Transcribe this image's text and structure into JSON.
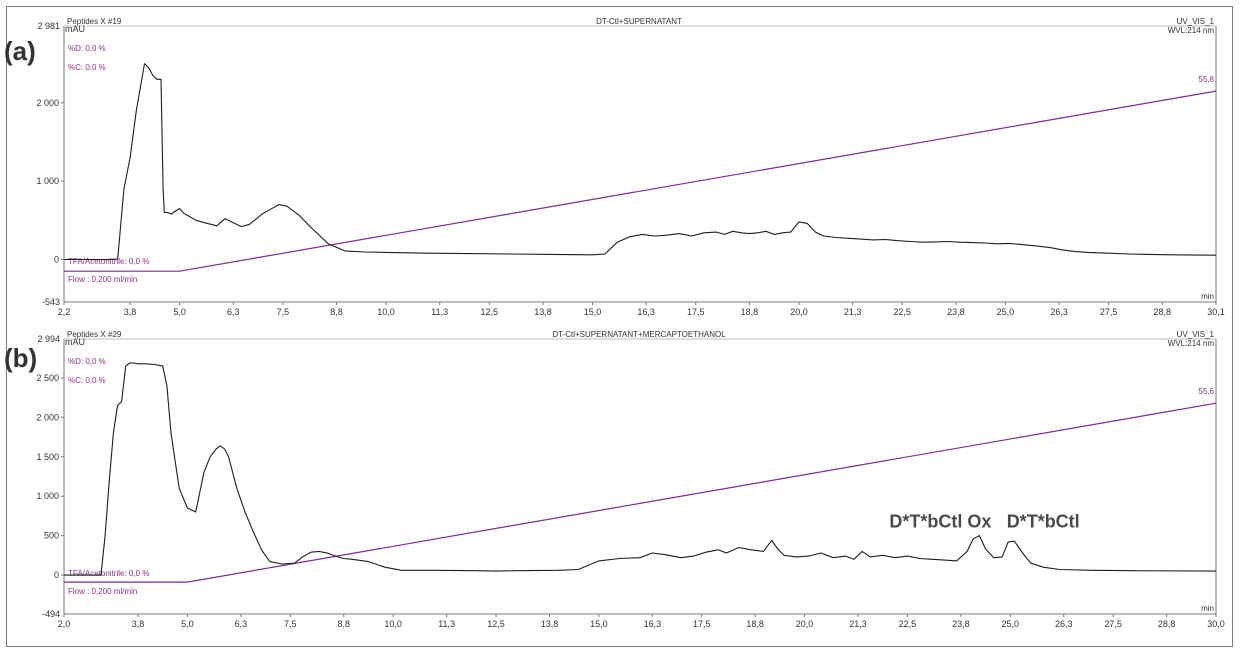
{
  "chart_data": [
    {
      "type": "line",
      "panel_label": "(a)",
      "header_left": "Peptides X #19",
      "title": "DT-Ctl+SUPERNATANT",
      "header_right": "UV_VIS_1",
      "wavelength": "WVL:214 nm",
      "ylabel": "mAU",
      "xlabel": "min",
      "xlim": [
        2.2,
        30.1
      ],
      "ylim": [
        -543,
        2981
      ],
      "y_top_label": "2 981",
      "y_bottom_label": "-543",
      "yticks": [
        {
          "value": 2000,
          "label": "2 000"
        },
        {
          "value": 1000,
          "label": "1 000"
        },
        {
          "value": 0,
          "label": "0"
        }
      ],
      "xticks": [
        {
          "value": 2.2,
          "label": "2,2"
        },
        {
          "value": 3.8,
          "label": "3,8"
        },
        {
          "value": 5.0,
          "label": "5,0"
        },
        {
          "value": 6.3,
          "label": "6,3"
        },
        {
          "value": 7.5,
          "label": "7,5"
        },
        {
          "value": 8.8,
          "label": "8,8"
        },
        {
          "value": 10.0,
          "label": "10,0"
        },
        {
          "value": 11.3,
          "label": "11,3"
        },
        {
          "value": 12.5,
          "label": "12,5"
        },
        {
          "value": 13.8,
          "label": "13,8"
        },
        {
          "value": 15.0,
          "label": "15,0"
        },
        {
          "value": 16.3,
          "label": "16,3"
        },
        {
          "value": 17.5,
          "label": "17,5"
        },
        {
          "value": 18.8,
          "label": "18,8"
        },
        {
          "value": 20.0,
          "label": "20,0"
        },
        {
          "value": 21.3,
          "label": "21,3"
        },
        {
          "value": 22.5,
          "label": "22,5"
        },
        {
          "value": 23.8,
          "label": "23,8"
        },
        {
          "value": 25.0,
          "label": "25,0"
        },
        {
          "value": 26.3,
          "label": "26,3"
        },
        {
          "value": 27.5,
          "label": "27,5"
        },
        {
          "value": 28.8,
          "label": "28,8"
        },
        {
          "value": 30.1,
          "label": "30,1"
        }
      ],
      "method_labels": [
        "%D: 0,0 %",
        "%C: 0,0 %",
        "TFA/Acetonitrile: 0,0 %",
        "Flow : 0,200 ml/min"
      ],
      "gradient": {
        "end_label": "55,8",
        "x": [
          2.2,
          5.0,
          30.1
        ],
        "y": [
          -150,
          -150,
          2150
        ]
      },
      "series": [
        {
          "x": [
            2.2,
            3.0,
            3.2,
            3.5,
            3.65,
            3.8,
            3.95,
            4.05,
            4.15,
            4.25,
            4.35,
            4.45,
            4.55,
            4.6,
            4.63,
            4.65,
            4.7,
            4.8,
            4.9,
            5.0,
            5.1,
            5.2,
            5.4,
            5.6,
            5.9,
            6.1,
            6.3,
            6.5,
            6.7,
            7.0,
            7.2,
            7.4,
            7.6,
            7.9,
            8.2,
            8.6,
            9.0,
            9.5,
            10.0,
            11.0,
            12.0,
            13.0,
            14.0,
            15.0,
            15.3,
            15.6,
            15.9,
            16.2,
            16.5,
            16.8,
            17.1,
            17.4,
            17.7,
            18.0,
            18.2,
            18.4,
            18.6,
            18.8,
            19.0,
            19.2,
            19.4,
            19.6,
            19.8,
            20.0,
            20.2,
            20.4,
            20.6,
            20.9,
            21.2,
            21.5,
            21.8,
            22.1,
            22.4,
            22.7,
            23.0,
            23.3,
            23.6,
            23.9,
            24.2,
            24.5,
            24.8,
            25.1,
            25.4,
            25.8,
            26.1,
            26.4,
            26.7,
            27.0,
            27.5,
            28.0,
            29.0,
            30.1
          ],
          "y": [
            0,
            0,
            0,
            5,
            900,
            1300,
            1900,
            2200,
            2500,
            2450,
            2350,
            2300,
            2300,
            900,
            600,
            600,
            600,
            580,
            620,
            650,
            590,
            560,
            500,
            470,
            430,
            520,
            470,
            420,
            450,
            580,
            640,
            700,
            680,
            560,
            400,
            200,
            110,
            95,
            90,
            80,
            75,
            70,
            65,
            60,
            70,
            220,
            290,
            320,
            300,
            310,
            330,
            300,
            340,
            350,
            320,
            360,
            340,
            330,
            340,
            360,
            320,
            340,
            350,
            480,
            460,
            350,
            300,
            280,
            270,
            260,
            250,
            255,
            240,
            230,
            220,
            225,
            230,
            220,
            215,
            210,
            200,
            205,
            190,
            170,
            150,
            120,
            100,
            90,
            80,
            70,
            60,
            55
          ]
        }
      ],
      "annotations": []
    },
    {
      "type": "line",
      "panel_label": "(b)",
      "header_left": "Peptides X #29",
      "title": "DT-Ctl+SUPERNATANT+MERCAPTOETHANOL",
      "header_right": "UV_VIS_1",
      "wavelength": "WVL:214 nm",
      "ylabel": "mAU",
      "xlabel": "min",
      "xlim": [
        2.0,
        30.0
      ],
      "ylim": [
        -494,
        2994
      ],
      "y_top_label": "2 994",
      "y_bottom_label": "-494",
      "yticks": [
        {
          "value": 2500,
          "label": "2 500"
        },
        {
          "value": 2000,
          "label": "2 000"
        },
        {
          "value": 1500,
          "label": "1 500"
        },
        {
          "value": 1000,
          "label": "1 000"
        },
        {
          "value": 500,
          "label": "500"
        },
        {
          "value": 0,
          "label": "0"
        }
      ],
      "xticks": [
        {
          "value": 2.0,
          "label": "2,0"
        },
        {
          "value": 3.8,
          "label": "3,8"
        },
        {
          "value": 5.0,
          "label": "5,0"
        },
        {
          "value": 6.3,
          "label": "6,3"
        },
        {
          "value": 7.5,
          "label": "7,5"
        },
        {
          "value": 8.8,
          "label": "8,8"
        },
        {
          "value": 10.0,
          "label": "10,0"
        },
        {
          "value": 11.3,
          "label": "11,3"
        },
        {
          "value": 12.5,
          "label": "12,5"
        },
        {
          "value": 13.8,
          "label": "13,8"
        },
        {
          "value": 15.0,
          "label": "15,0"
        },
        {
          "value": 16.3,
          "label": "16,3"
        },
        {
          "value": 17.5,
          "label": "17,5"
        },
        {
          "value": 18.8,
          "label": "18,8"
        },
        {
          "value": 20.0,
          "label": "20,0"
        },
        {
          "value": 21.3,
          "label": "21,3"
        },
        {
          "value": 22.5,
          "label": "22,5"
        },
        {
          "value": 23.8,
          "label": "23,8"
        },
        {
          "value": 25.0,
          "label": "25,0"
        },
        {
          "value": 26.3,
          "label": "26,3"
        },
        {
          "value": 27.5,
          "label": "27,5"
        },
        {
          "value": 28.8,
          "label": "28,8"
        },
        {
          "value": 30.0,
          "label": "30,0"
        }
      ],
      "method_labels": [
        "%D: 0,0 %",
        "%C: 0,0 %",
        "TFA/Acetonitrile: 0,0 %",
        "Flow : 0,200 ml/min"
      ],
      "gradient": {
        "end_label": "55,6",
        "x": [
          2.0,
          5.0,
          30.0
        ],
        "y": [
          -90,
          -90,
          2180
        ]
      },
      "series": [
        {
          "x": [
            2.0,
            2.9,
            3.0,
            3.1,
            3.2,
            3.3,
            3.4,
            3.5,
            3.6,
            3.7,
            3.8,
            4.0,
            4.2,
            4.4,
            4.5,
            4.6,
            4.8,
            5.0,
            5.2,
            5.4,
            5.55,
            5.7,
            5.8,
            5.9,
            6.0,
            6.1,
            6.2,
            6.4,
            6.6,
            6.8,
            7.0,
            7.3,
            7.6,
            7.8,
            8.0,
            8.2,
            8.4,
            8.6,
            8.8,
            9.0,
            9.4,
            9.8,
            10.2,
            11.0,
            12.0,
            12.5,
            13.0,
            14.0,
            14.5,
            15.0,
            15.5,
            16.0,
            16.3,
            16.6,
            17.0,
            17.3,
            17.6,
            17.9,
            18.1,
            18.4,
            18.7,
            19.0,
            19.2,
            19.35,
            19.5,
            19.8,
            20.1,
            20.4,
            20.7,
            21.0,
            21.2,
            21.4,
            21.6,
            21.9,
            22.2,
            22.5,
            22.8,
            23.1,
            23.4,
            23.7,
            23.95,
            24.1,
            24.25,
            24.4,
            24.6,
            24.8,
            24.95,
            25.1,
            25.3,
            25.5,
            25.8,
            26.2,
            27.0,
            28.0,
            30.0
          ],
          "y": [
            0,
            0,
            500,
            1200,
            1800,
            2150,
            2200,
            2650,
            2690,
            2690,
            2680,
            2680,
            2670,
            2650,
            2400,
            1800,
            1100,
            850,
            800,
            1300,
            1500,
            1600,
            1640,
            1600,
            1500,
            1300,
            1100,
            800,
            550,
            320,
            170,
            140,
            150,
            230,
            290,
            300,
            280,
            240,
            210,
            200,
            170,
            100,
            60,
            60,
            55,
            50,
            55,
            60,
            70,
            180,
            210,
            220,
            280,
            260,
            220,
            240,
            290,
            320,
            280,
            350,
            320,
            300,
            440,
            330,
            250,
            230,
            240,
            280,
            220,
            240,
            200,
            300,
            230,
            250,
            220,
            240,
            210,
            200,
            190,
            180,
            300,
            460,
            500,
            330,
            220,
            230,
            420,
            430,
            280,
            150,
            100,
            70,
            60,
            55,
            50
          ]
        }
      ],
      "annotations": [
        {
          "text": "D*T*bCtl Ox",
          "x": 23.3,
          "y": 600
        },
        {
          "text": "D*T*bCtl",
          "x": 25.8,
          "y": 600
        }
      ]
    }
  ],
  "colors": {
    "trace": "#1e1e1e",
    "gradient": "#7b2c91",
    "header_text": "#333333",
    "method_text": "#8e2f8e",
    "annotation": "#4a4a4a",
    "axis": "#7a7a7a"
  }
}
